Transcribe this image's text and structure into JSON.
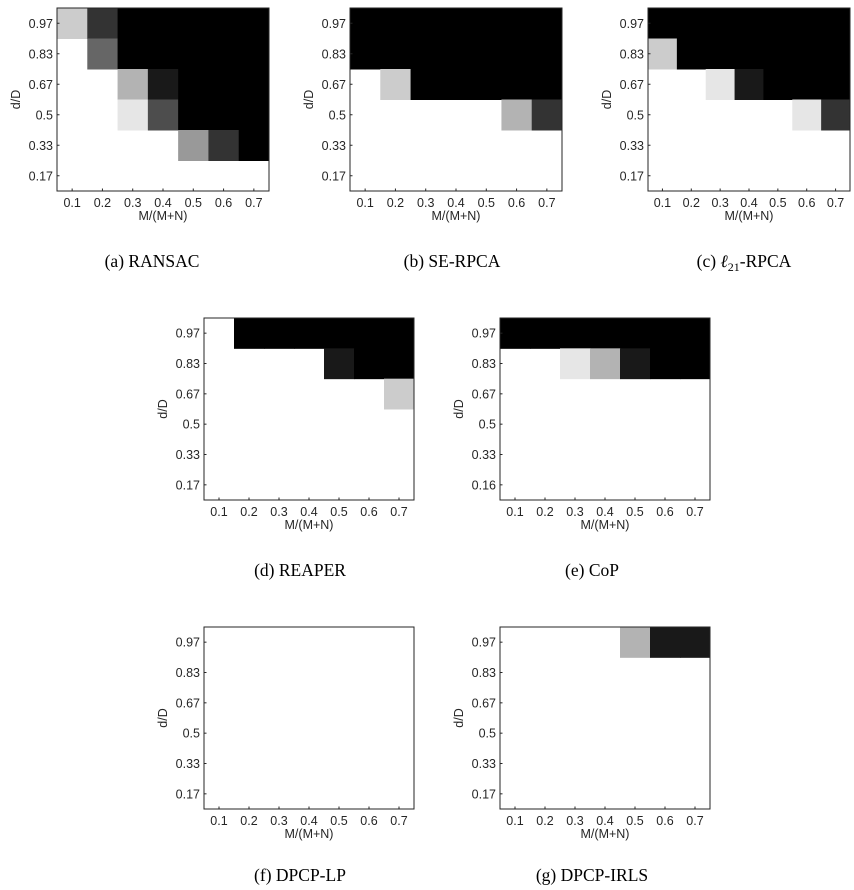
{
  "chart_data": [
    {
      "type": "heatmap",
      "caption": "(a) RANSAC",
      "xlabel": "M/(M+N)",
      "ylabel": "d/D",
      "x_ticks": [
        "0.1",
        "0.2",
        "0.3",
        "0.4",
        "0.5",
        "0.6",
        "0.7"
      ],
      "y_ticks": [
        "0.97",
        "0.83",
        "0.67",
        "0.5",
        "0.33",
        "0.17"
      ],
      "value_range": [
        0,
        1
      ],
      "colormap": "gray (white = 0, black = 1)",
      "values": [
        [
          0.2,
          0.8,
          1,
          1,
          1,
          1,
          1
        ],
        [
          0,
          0.6,
          1,
          1,
          1,
          1,
          1
        ],
        [
          0,
          0,
          0.3,
          0.9,
          1,
          1,
          1
        ],
        [
          0,
          0,
          0.1,
          0.7,
          1,
          1,
          1
        ],
        [
          0,
          0,
          0,
          0,
          0.4,
          0.8,
          1
        ],
        [
          0,
          0,
          0,
          0,
          0,
          0,
          0
        ]
      ]
    },
    {
      "type": "heatmap",
      "caption": "(b) SE-RPCA",
      "xlabel": "M/(M+N)",
      "ylabel": "d/D",
      "x_ticks": [
        "0.1",
        "0.2",
        "0.3",
        "0.4",
        "0.5",
        "0.6",
        "0.7"
      ],
      "y_ticks": [
        "0.97",
        "0.83",
        "0.67",
        "0.5",
        "0.33",
        "0.17"
      ],
      "value_range": [
        0,
        1
      ],
      "values": [
        [
          1,
          1,
          1,
          1,
          1,
          1,
          1
        ],
        [
          1,
          1,
          1,
          1,
          1,
          1,
          1
        ],
        [
          0,
          0.2,
          1,
          1,
          1,
          1,
          1
        ],
        [
          0,
          0,
          0,
          0,
          0,
          0.3,
          0.8
        ],
        [
          0,
          0,
          0,
          0,
          0,
          0,
          0
        ],
        [
          0,
          0,
          0,
          0,
          0,
          0,
          0
        ]
      ]
    },
    {
      "type": "heatmap",
      "caption": "(c) ℓ21-RPCA",
      "caption_prefix": "(c) ",
      "caption_symbol": "ℓ",
      "caption_subscript": "21",
      "caption_suffix": "-RPCA",
      "xlabel": "M/(M+N)",
      "ylabel": "d/D",
      "x_ticks": [
        "0.1",
        "0.2",
        "0.3",
        "0.4",
        "0.5",
        "0.6",
        "0.7"
      ],
      "y_ticks": [
        "0.97",
        "0.83",
        "0.67",
        "0.5",
        "0.33",
        "0.17"
      ],
      "value_range": [
        0,
        1
      ],
      "values": [
        [
          1,
          1,
          1,
          1,
          1,
          1,
          1
        ],
        [
          0.2,
          1,
          1,
          1,
          1,
          1,
          1
        ],
        [
          0,
          0,
          0.1,
          0.9,
          1,
          1,
          1
        ],
        [
          0,
          0,
          0,
          0,
          0,
          0.1,
          0.8
        ],
        [
          0,
          0,
          0,
          0,
          0,
          0,
          0
        ],
        [
          0,
          0,
          0,
          0,
          0,
          0,
          0
        ]
      ]
    },
    {
      "type": "heatmap",
      "caption": "(d) REAPER",
      "xlabel": "M/(M+N)",
      "ylabel": "d/D",
      "x_ticks": [
        "0.1",
        "0.2",
        "0.3",
        "0.4",
        "0.5",
        "0.6",
        "0.7"
      ],
      "y_ticks": [
        "0.97",
        "0.83",
        "0.67",
        "0.5",
        "0.33",
        "0.17"
      ],
      "value_range": [
        0,
        1
      ],
      "values": [
        [
          0,
          1,
          1,
          1,
          1,
          1,
          1
        ],
        [
          0,
          0,
          0,
          0,
          0.9,
          1,
          1
        ],
        [
          0,
          0,
          0,
          0,
          0,
          0,
          0.2
        ],
        [
          0,
          0,
          0,
          0,
          0,
          0,
          0
        ],
        [
          0,
          0,
          0,
          0,
          0,
          0,
          0
        ],
        [
          0,
          0,
          0,
          0,
          0,
          0,
          0
        ]
      ]
    },
    {
      "type": "heatmap",
      "caption": "(e) CoP",
      "xlabel": "M/(M+N)",
      "ylabel": "d/D",
      "x_ticks": [
        "0.1",
        "0.2",
        "0.3",
        "0.4",
        "0.5",
        "0.6",
        "0.7"
      ],
      "y_ticks": [
        "0.97",
        "0.83",
        "0.67",
        "0.5",
        "0.33",
        "0.16"
      ],
      "value_range": [
        0,
        1
      ],
      "values": [
        [
          1,
          1,
          1,
          1,
          1,
          1,
          1
        ],
        [
          0,
          0,
          0.1,
          0.3,
          0.9,
          1,
          1
        ],
        [
          0,
          0,
          0,
          0,
          0,
          0,
          0
        ],
        [
          0,
          0,
          0,
          0,
          0,
          0,
          0
        ],
        [
          0,
          0,
          0,
          0,
          0,
          0,
          0
        ],
        [
          0,
          0,
          0,
          0,
          0,
          0,
          0
        ]
      ]
    },
    {
      "type": "heatmap",
      "caption": "(f) DPCP-LP",
      "xlabel": "M/(M+N)",
      "ylabel": "d/D",
      "x_ticks": [
        "0.1",
        "0.2",
        "0.3",
        "0.4",
        "0.5",
        "0.6",
        "0.7"
      ],
      "y_ticks": [
        "0.97",
        "0.83",
        "0.67",
        "0.5",
        "0.33",
        "0.17"
      ],
      "value_range": [
        0,
        1
      ],
      "values": [
        [
          0,
          0,
          0,
          0,
          0,
          0,
          0
        ],
        [
          0,
          0,
          0,
          0,
          0,
          0,
          0
        ],
        [
          0,
          0,
          0,
          0,
          0,
          0,
          0
        ],
        [
          0,
          0,
          0,
          0,
          0,
          0,
          0
        ],
        [
          0,
          0,
          0,
          0,
          0,
          0,
          0
        ],
        [
          0,
          0,
          0,
          0,
          0,
          0,
          0
        ]
      ]
    },
    {
      "type": "heatmap",
      "caption": "(g) DPCP-IRLS",
      "xlabel": "M/(M+N)",
      "ylabel": "d/D",
      "x_ticks": [
        "0.1",
        "0.2",
        "0.3",
        "0.4",
        "0.5",
        "0.6",
        "0.7"
      ],
      "y_ticks": [
        "0.97",
        "0.83",
        "0.67",
        "0.5",
        "0.33",
        "0.17"
      ],
      "value_range": [
        0,
        1
      ],
      "values": [
        [
          0,
          0,
          0,
          0,
          0.3,
          0.9,
          0.9
        ],
        [
          0,
          0,
          0,
          0,
          0,
          0,
          0
        ],
        [
          0,
          0,
          0,
          0,
          0,
          0,
          0
        ],
        [
          0,
          0,
          0,
          0,
          0,
          0,
          0
        ],
        [
          0,
          0,
          0,
          0,
          0,
          0,
          0
        ],
        [
          0,
          0,
          0,
          0,
          0,
          0,
          0
        ]
      ]
    }
  ]
}
